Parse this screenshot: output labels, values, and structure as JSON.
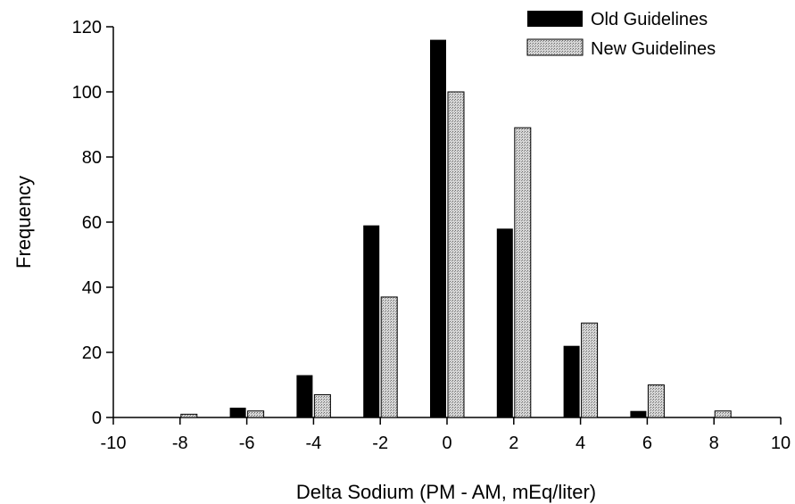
{
  "chart_data": {
    "type": "bar",
    "title": "",
    "xlabel": "Delta Sodium (PM - AM, mEq/liter)",
    "ylabel": "Frequency",
    "x": [
      -8,
      -6,
      -4,
      -2,
      0,
      2,
      4,
      6,
      8
    ],
    "xlim": [
      -10,
      10
    ],
    "ylim": [
      0,
      120
    ],
    "xticks": [
      "-10",
      "-8",
      "-6",
      "-4",
      "-2",
      "0",
      "2",
      "4",
      "6",
      "8",
      "10"
    ],
    "yticks": [
      "0",
      "20",
      "40",
      "60",
      "80",
      "100",
      "120"
    ],
    "grid": false,
    "legend_position": "top-right",
    "series": [
      {
        "name": "Old Guidelines",
        "values": [
          0,
          3,
          13,
          59,
          116,
          58,
          22,
          2,
          0
        ],
        "color": "#000000"
      },
      {
        "name": "New Guidelines",
        "values": [
          1,
          2,
          7,
          37,
          100,
          89,
          29,
          10,
          2
        ],
        "color": "#c8c8c8"
      }
    ]
  }
}
